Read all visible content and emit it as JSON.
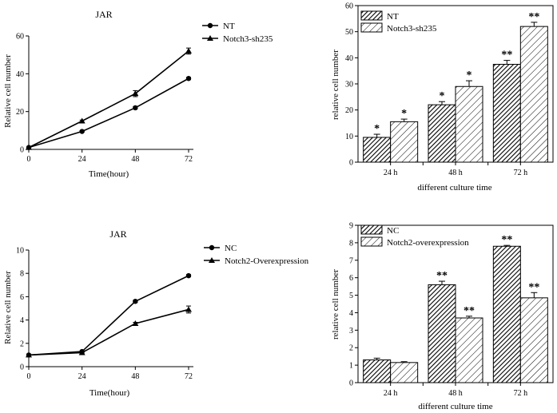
{
  "chart_data": [
    {
      "type": "line",
      "title": "JAR",
      "xlabel": "Time(hour)",
      "ylabel": "Relative cell number",
      "x": [
        0,
        24,
        48,
        72
      ],
      "xlim": [
        0,
        72
      ],
      "ylim": [
        0,
        60
      ],
      "xticks": [
        "0",
        "24",
        "48",
        "72"
      ],
      "yticks": [
        "0",
        "20",
        "40",
        "60"
      ],
      "legend_position": "top-right",
      "series": [
        {
          "name": "NT",
          "marker": "circle",
          "values": [
            1,
            9.5,
            22,
            37.5
          ],
          "errors": [
            0,
            0.4,
            0.6,
            0.6
          ]
        },
        {
          "name": "Notch3-sh235",
          "marker": "triangle",
          "values": [
            1,
            15,
            29.5,
            52
          ],
          "errors": [
            0,
            0.5,
            1.6,
            1.6
          ]
        }
      ]
    },
    {
      "type": "bar",
      "title": "",
      "xlabel": "different culture time",
      "ylabel": "relative cell number",
      "categories": [
        "24 h",
        "48 h",
        "72 h"
      ],
      "ylim": [
        0,
        60
      ],
      "yticks": [
        "0",
        "10",
        "20",
        "30",
        "40",
        "50",
        "60"
      ],
      "legend_position": "top-left",
      "series": [
        {
          "name": "NT",
          "pattern": "dense-hatch",
          "values": [
            9.5,
            22,
            37.5
          ],
          "errors": [
            1.2,
            1.2,
            1.5
          ],
          "significance": [
            "*",
            "*",
            "**"
          ]
        },
        {
          "name": "Notch3-sh235",
          "pattern": "sparse-hatch",
          "values": [
            15.5,
            29,
            52
          ],
          "errors": [
            1.0,
            2.2,
            1.6
          ],
          "significance": [
            "*",
            "*",
            "**"
          ]
        }
      ]
    },
    {
      "type": "line",
      "title": "JAR",
      "xlabel": "Time(hour)",
      "ylabel": "Relative cell number",
      "x": [
        0,
        24,
        48,
        72
      ],
      "xlim": [
        0,
        72
      ],
      "ylim": [
        0,
        10
      ],
      "xticks": [
        "0",
        "24",
        "48",
        "72"
      ],
      "yticks": [
        "0",
        "2",
        "4",
        "6",
        "8",
        "10"
      ],
      "legend_position": "top-right",
      "series": [
        {
          "name": "NC",
          "marker": "circle",
          "values": [
            1.0,
            1.3,
            5.6,
            7.8
          ],
          "errors": [
            0,
            0.05,
            0.1,
            0.1
          ]
        },
        {
          "name": "Notch2-Overexpression",
          "marker": "triangle",
          "values": [
            1.0,
            1.2,
            3.7,
            4.9
          ],
          "errors": [
            0,
            0.05,
            0.1,
            0.3
          ]
        }
      ]
    },
    {
      "type": "bar",
      "title": "",
      "xlabel": "different culture time",
      "ylabel": "relative cell number",
      "categories": [
        "24 h",
        "48 h",
        "72 h"
      ],
      "ylim": [
        0,
        9
      ],
      "yticks": [
        "0",
        "1",
        "2",
        "3",
        "4",
        "5",
        "6",
        "7",
        "8",
        "9"
      ],
      "legend_position": "top-left",
      "series": [
        {
          "name": "NC",
          "pattern": "dense-hatch",
          "values": [
            1.3,
            5.6,
            7.8
          ],
          "errors": [
            0.1,
            0.2,
            0.05
          ],
          "significance": [
            "",
            "**",
            "**"
          ]
        },
        {
          "name": "Notch2-overexpression",
          "pattern": "sparse-hatch",
          "values": [
            1.15,
            3.7,
            4.85
          ],
          "errors": [
            0.05,
            0.1,
            0.3
          ],
          "significance": [
            "",
            "**",
            "**"
          ]
        }
      ]
    }
  ]
}
